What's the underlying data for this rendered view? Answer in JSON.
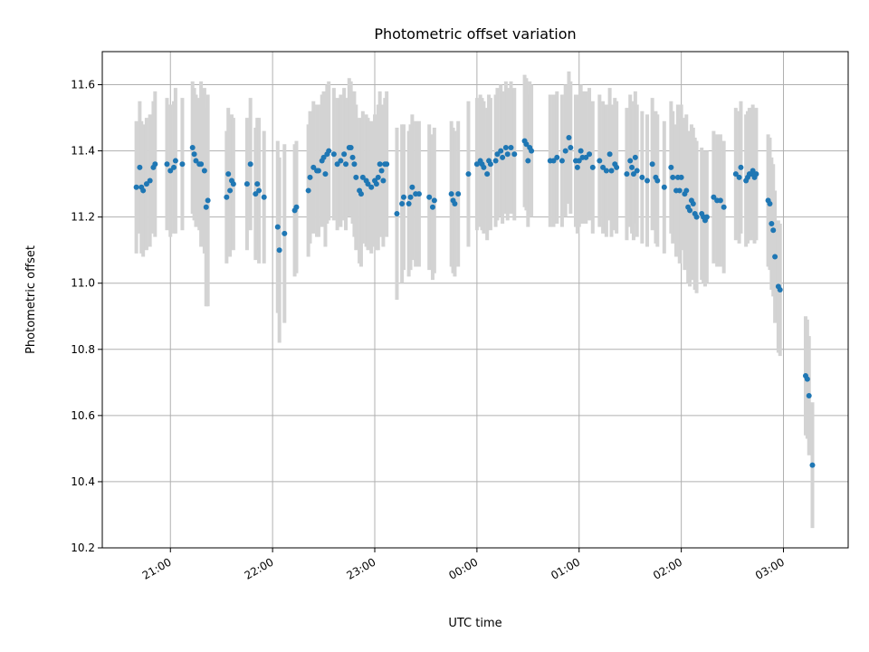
{
  "chart_data": {
    "type": "scatter",
    "title": "Photometric offset variation",
    "xlabel": "UTC time",
    "ylabel": "Photometric offset",
    "x_axis_type": "time",
    "x_range": [
      "20:20",
      "03:38"
    ],
    "ylim": [
      10.2,
      11.7
    ],
    "grid": true,
    "x_ticks": [
      "21:00",
      "22:00",
      "23:00",
      "00:00",
      "01:00",
      "02:00",
      "03:00"
    ],
    "y_ticks": [
      10.2,
      10.4,
      10.6,
      10.8,
      11.0,
      11.2,
      11.4,
      11.6
    ],
    "point_color": "#1f77b4",
    "errorbar_color": "#d3d3d3",
    "points": [
      {
        "x": "20:40",
        "y": 11.29,
        "e": 0.2
      },
      {
        "x": "20:42",
        "y": 11.35,
        "e": 0.2
      },
      {
        "x": "20:43",
        "y": 11.29,
        "e": 0.2
      },
      {
        "x": "20:44",
        "y": 11.28,
        "e": 0.2
      },
      {
        "x": "20:46",
        "y": 11.3,
        "e": 0.2
      },
      {
        "x": "20:48",
        "y": 11.31,
        "e": 0.2
      },
      {
        "x": "20:50",
        "y": 11.35,
        "e": 0.2
      },
      {
        "x": "20:51",
        "y": 11.36,
        "e": 0.22
      },
      {
        "x": "20:58",
        "y": 11.36,
        "e": 0.2
      },
      {
        "x": "21:00",
        "y": 11.34,
        "e": 0.2
      },
      {
        "x": "21:02",
        "y": 11.35,
        "e": 0.2
      },
      {
        "x": "21:03",
        "y": 11.37,
        "e": 0.22
      },
      {
        "x": "21:07",
        "y": 11.36,
        "e": 0.2
      },
      {
        "x": "21:13",
        "y": 11.41,
        "e": 0.2
      },
      {
        "x": "21:14",
        "y": 11.39,
        "e": 0.2
      },
      {
        "x": "21:15",
        "y": 11.37,
        "e": 0.2
      },
      {
        "x": "21:17",
        "y": 11.36,
        "e": 0.2
      },
      {
        "x": "21:18",
        "y": 11.36,
        "e": 0.25
      },
      {
        "x": "21:20",
        "y": 11.34,
        "e": 0.25
      },
      {
        "x": "21:21",
        "y": 11.23,
        "e": 0.3
      },
      {
        "x": "21:22",
        "y": 11.25,
        "e": 0.32
      },
      {
        "x": "21:33",
        "y": 11.26,
        "e": 0.2
      },
      {
        "x": "21:34",
        "y": 11.33,
        "e": 0.2
      },
      {
        "x": "21:35",
        "y": 11.28,
        "e": 0.2
      },
      {
        "x": "21:36",
        "y": 11.31,
        "e": 0.2
      },
      {
        "x": "21:37",
        "y": 11.3,
        "e": 0.2
      },
      {
        "x": "21:45",
        "y": 11.3,
        "e": 0.2
      },
      {
        "x": "21:47",
        "y": 11.36,
        "e": 0.2
      },
      {
        "x": "21:50",
        "y": 11.27,
        "e": 0.2
      },
      {
        "x": "21:51",
        "y": 11.3,
        "e": 0.2
      },
      {
        "x": "21:52",
        "y": 11.28,
        "e": 0.22
      },
      {
        "x": "21:55",
        "y": 11.26,
        "e": 0.2
      },
      {
        "x": "22:03",
        "y": 11.17,
        "e": 0.26
      },
      {
        "x": "22:04",
        "y": 11.1,
        "e": 0.28
      },
      {
        "x": "22:07",
        "y": 11.15,
        "e": 0.27
      },
      {
        "x": "22:13",
        "y": 11.22,
        "e": 0.2
      },
      {
        "x": "22:14",
        "y": 11.23,
        "e": 0.2
      },
      {
        "x": "22:21",
        "y": 11.28,
        "e": 0.2
      },
      {
        "x": "22:22",
        "y": 11.32,
        "e": 0.2
      },
      {
        "x": "22:24",
        "y": 11.35,
        "e": 0.2
      },
      {
        "x": "22:26",
        "y": 11.34,
        "e": 0.2
      },
      {
        "x": "22:27",
        "y": 11.34,
        "e": 0.2
      },
      {
        "x": "22:29",
        "y": 11.37,
        "e": 0.2
      },
      {
        "x": "22:30",
        "y": 11.38,
        "e": 0.2
      },
      {
        "x": "22:31",
        "y": 11.33,
        "e": 0.22
      },
      {
        "x": "22:32",
        "y": 11.39,
        "e": 0.21
      },
      {
        "x": "22:33",
        "y": 11.4,
        "e": 0.21
      },
      {
        "x": "22:36",
        "y": 11.39,
        "e": 0.2
      },
      {
        "x": "22:38",
        "y": 11.36,
        "e": 0.2
      },
      {
        "x": "22:40",
        "y": 11.37,
        "e": 0.2
      },
      {
        "x": "22:42",
        "y": 11.39,
        "e": 0.2
      },
      {
        "x": "22:43",
        "y": 11.36,
        "e": 0.2
      },
      {
        "x": "22:45",
        "y": 11.41,
        "e": 0.21
      },
      {
        "x": "22:46",
        "y": 11.41,
        "e": 0.2
      },
      {
        "x": "22:47",
        "y": 11.38,
        "e": 0.2
      },
      {
        "x": "22:48",
        "y": 11.36,
        "e": 0.22
      },
      {
        "x": "22:49",
        "y": 11.32,
        "e": 0.22
      },
      {
        "x": "22:51",
        "y": 11.28,
        "e": 0.22
      },
      {
        "x": "22:52",
        "y": 11.27,
        "e": 0.22
      },
      {
        "x": "22:53",
        "y": 11.32,
        "e": 0.2
      },
      {
        "x": "22:55",
        "y": 11.31,
        "e": 0.2
      },
      {
        "x": "22:56",
        "y": 11.3,
        "e": 0.2
      },
      {
        "x": "22:58",
        "y": 11.29,
        "e": 0.2
      },
      {
        "x": "23:00",
        "y": 11.31,
        "e": 0.2
      },
      {
        "x": "23:01",
        "y": 11.3,
        "e": 0.2
      },
      {
        "x": "23:02",
        "y": 11.32,
        "e": 0.22
      },
      {
        "x": "23:03",
        "y": 11.36,
        "e": 0.22
      },
      {
        "x": "23:04",
        "y": 11.34,
        "e": 0.2
      },
      {
        "x": "23:05",
        "y": 11.31,
        "e": 0.2
      },
      {
        "x": "23:06",
        "y": 11.36,
        "e": 0.2
      },
      {
        "x": "23:07",
        "y": 11.36,
        "e": 0.22
      },
      {
        "x": "23:13",
        "y": 11.21,
        "e": 0.26
      },
      {
        "x": "23:16",
        "y": 11.24,
        "e": 0.24
      },
      {
        "x": "23:17",
        "y": 11.26,
        "e": 0.22
      },
      {
        "x": "23:20",
        "y": 11.24,
        "e": 0.22
      },
      {
        "x": "23:21",
        "y": 11.26,
        "e": 0.22
      },
      {
        "x": "23:22",
        "y": 11.29,
        "e": 0.22
      },
      {
        "x": "23:24",
        "y": 11.27,
        "e": 0.22
      },
      {
        "x": "23:26",
        "y": 11.27,
        "e": 0.22
      },
      {
        "x": "23:32",
        "y": 11.26,
        "e": 0.22
      },
      {
        "x": "23:34",
        "y": 11.23,
        "e": 0.22
      },
      {
        "x": "23:35",
        "y": 11.25,
        "e": 0.22
      },
      {
        "x": "23:45",
        "y": 11.27,
        "e": 0.22
      },
      {
        "x": "23:46",
        "y": 11.25,
        "e": 0.22
      },
      {
        "x": "23:47",
        "y": 11.24,
        "e": 0.22
      },
      {
        "x": "23:49",
        "y": 11.27,
        "e": 0.22
      },
      {
        "x": "23:55",
        "y": 11.33,
        "e": 0.22
      },
      {
        "x": "24:00",
        "y": 11.36,
        "e": 0.2
      },
      {
        "x": "24:02",
        "y": 11.37,
        "e": 0.2
      },
      {
        "x": "24:03",
        "y": 11.36,
        "e": 0.2
      },
      {
        "x": "24:04",
        "y": 11.35,
        "e": 0.2
      },
      {
        "x": "24:06",
        "y": 11.33,
        "e": 0.2
      },
      {
        "x": "24:07",
        "y": 11.37,
        "e": 0.2
      },
      {
        "x": "24:08",
        "y": 11.36,
        "e": 0.2
      },
      {
        "x": "24:11",
        "y": 11.37,
        "e": 0.2
      },
      {
        "x": "24:12",
        "y": 11.39,
        "e": 0.2
      },
      {
        "x": "24:14",
        "y": 11.4,
        "e": 0.2
      },
      {
        "x": "24:15",
        "y": 11.38,
        "e": 0.2
      },
      {
        "x": "24:17",
        "y": 11.41,
        "e": 0.2
      },
      {
        "x": "24:18",
        "y": 11.39,
        "e": 0.2
      },
      {
        "x": "24:20",
        "y": 11.41,
        "e": 0.2
      },
      {
        "x": "24:22",
        "y": 11.39,
        "e": 0.2
      },
      {
        "x": "24:28",
        "y": 11.43,
        "e": 0.2
      },
      {
        "x": "24:29",
        "y": 11.42,
        "e": 0.2
      },
      {
        "x": "24:30",
        "y": 11.37,
        "e": 0.2
      },
      {
        "x": "24:31",
        "y": 11.41,
        "e": 0.2
      },
      {
        "x": "24:32",
        "y": 11.4,
        "e": 0.2
      },
      {
        "x": "24:43",
        "y": 11.37,
        "e": 0.2
      },
      {
        "x": "24:45",
        "y": 11.37,
        "e": 0.2
      },
      {
        "x": "24:47",
        "y": 11.38,
        "e": 0.2
      },
      {
        "x": "24:50",
        "y": 11.37,
        "e": 0.2
      },
      {
        "x": "24:52",
        "y": 11.4,
        "e": 0.2
      },
      {
        "x": "24:54",
        "y": 11.44,
        "e": 0.2
      },
      {
        "x": "24:55",
        "y": 11.41,
        "e": 0.2
      },
      {
        "x": "24:58",
        "y": 11.37,
        "e": 0.2
      },
      {
        "x": "24:59",
        "y": 11.35,
        "e": 0.2
      },
      {
        "x": "25:00",
        "y": 11.37,
        "e": 0.2
      },
      {
        "x": "25:01",
        "y": 11.4,
        "e": 0.2
      },
      {
        "x": "25:02",
        "y": 11.38,
        "e": 0.2
      },
      {
        "x": "25:04",
        "y": 11.38,
        "e": 0.2
      },
      {
        "x": "25:06",
        "y": 11.39,
        "e": 0.2
      },
      {
        "x": "25:08",
        "y": 11.35,
        "e": 0.2
      },
      {
        "x": "25:12",
        "y": 11.37,
        "e": 0.2
      },
      {
        "x": "25:14",
        "y": 11.35,
        "e": 0.2
      },
      {
        "x": "25:16",
        "y": 11.34,
        "e": 0.2
      },
      {
        "x": "25:18",
        "y": 11.39,
        "e": 0.2
      },
      {
        "x": "25:19",
        "y": 11.34,
        "e": 0.2
      },
      {
        "x": "25:21",
        "y": 11.36,
        "e": 0.2
      },
      {
        "x": "25:22",
        "y": 11.35,
        "e": 0.2
      },
      {
        "x": "25:28",
        "y": 11.33,
        "e": 0.2
      },
      {
        "x": "25:30",
        "y": 11.37,
        "e": 0.2
      },
      {
        "x": "25:31",
        "y": 11.35,
        "e": 0.2
      },
      {
        "x": "25:32",
        "y": 11.33,
        "e": 0.2
      },
      {
        "x": "25:33",
        "y": 11.38,
        "e": 0.2
      },
      {
        "x": "25:34",
        "y": 11.34,
        "e": 0.2
      },
      {
        "x": "25:37",
        "y": 11.32,
        "e": 0.2
      },
      {
        "x": "25:40",
        "y": 11.31,
        "e": 0.2
      },
      {
        "x": "25:43",
        "y": 11.36,
        "e": 0.2
      },
      {
        "x": "25:45",
        "y": 11.32,
        "e": 0.2
      },
      {
        "x": "25:46",
        "y": 11.31,
        "e": 0.2
      },
      {
        "x": "25:50",
        "y": 11.29,
        "e": 0.2
      },
      {
        "x": "25:54",
        "y": 11.35,
        "e": 0.2
      },
      {
        "x": "25:55",
        "y": 11.32,
        "e": 0.2
      },
      {
        "x": "25:57",
        "y": 11.28,
        "e": 0.2
      },
      {
        "x": "25:58",
        "y": 11.32,
        "e": 0.22
      },
      {
        "x": "25:59",
        "y": 11.28,
        "e": 0.22
      },
      {
        "x": "26:00",
        "y": 11.32,
        "e": 0.22
      },
      {
        "x": "26:02",
        "y": 11.27,
        "e": 0.23
      },
      {
        "x": "26:03",
        "y": 11.28,
        "e": 0.23
      },
      {
        "x": "26:04",
        "y": 11.23,
        "e": 0.23
      },
      {
        "x": "26:05",
        "y": 11.22,
        "e": 0.23
      },
      {
        "x": "26:06",
        "y": 11.25,
        "e": 0.23
      },
      {
        "x": "26:07",
        "y": 11.24,
        "e": 0.23
      },
      {
        "x": "26:08",
        "y": 11.21,
        "e": 0.23
      },
      {
        "x": "26:09",
        "y": 11.2,
        "e": 0.23
      },
      {
        "x": "26:12",
        "y": 11.21,
        "e": 0.2
      },
      {
        "x": "26:13",
        "y": 11.2,
        "e": 0.2
      },
      {
        "x": "26:14",
        "y": 11.19,
        "e": 0.2
      },
      {
        "x": "26:15",
        "y": 11.2,
        "e": 0.2
      },
      {
        "x": "26:19",
        "y": 11.26,
        "e": 0.2
      },
      {
        "x": "26:21",
        "y": 11.25,
        "e": 0.2
      },
      {
        "x": "26:23",
        "y": 11.25,
        "e": 0.2
      },
      {
        "x": "26:25",
        "y": 11.23,
        "e": 0.2
      },
      {
        "x": "26:32",
        "y": 11.33,
        "e": 0.2
      },
      {
        "x": "26:34",
        "y": 11.32,
        "e": 0.2
      },
      {
        "x": "26:35",
        "y": 11.35,
        "e": 0.2
      },
      {
        "x": "26:38",
        "y": 11.31,
        "e": 0.2
      },
      {
        "x": "26:39",
        "y": 11.32,
        "e": 0.2
      },
      {
        "x": "26:40",
        "y": 11.33,
        "e": 0.2
      },
      {
        "x": "26:41",
        "y": 11.33,
        "e": 0.2
      },
      {
        "x": "26:42",
        "y": 11.34,
        "e": 0.2
      },
      {
        "x": "26:43",
        "y": 11.32,
        "e": 0.2
      },
      {
        "x": "26:44",
        "y": 11.33,
        "e": 0.2
      },
      {
        "x": "26:51",
        "y": 11.25,
        "e": 0.2
      },
      {
        "x": "26:52",
        "y": 11.24,
        "e": 0.2
      },
      {
        "x": "26:53",
        "y": 11.18,
        "e": 0.2
      },
      {
        "x": "26:54",
        "y": 11.16,
        "e": 0.2
      },
      {
        "x": "26:55",
        "y": 11.08,
        "e": 0.2
      },
      {
        "x": "26:57",
        "y": 10.99,
        "e": 0.2
      },
      {
        "x": "26:58",
        "y": 10.98,
        "e": 0.2
      },
      {
        "x": "27:13",
        "y": 10.72,
        "e": 0.18
      },
      {
        "x": "27:14",
        "y": 10.71,
        "e": 0.18
      },
      {
        "x": "27:15",
        "y": 10.66,
        "e": 0.18
      },
      {
        "x": "27:17",
        "y": 10.45,
        "e": 0.19
      }
    ]
  }
}
